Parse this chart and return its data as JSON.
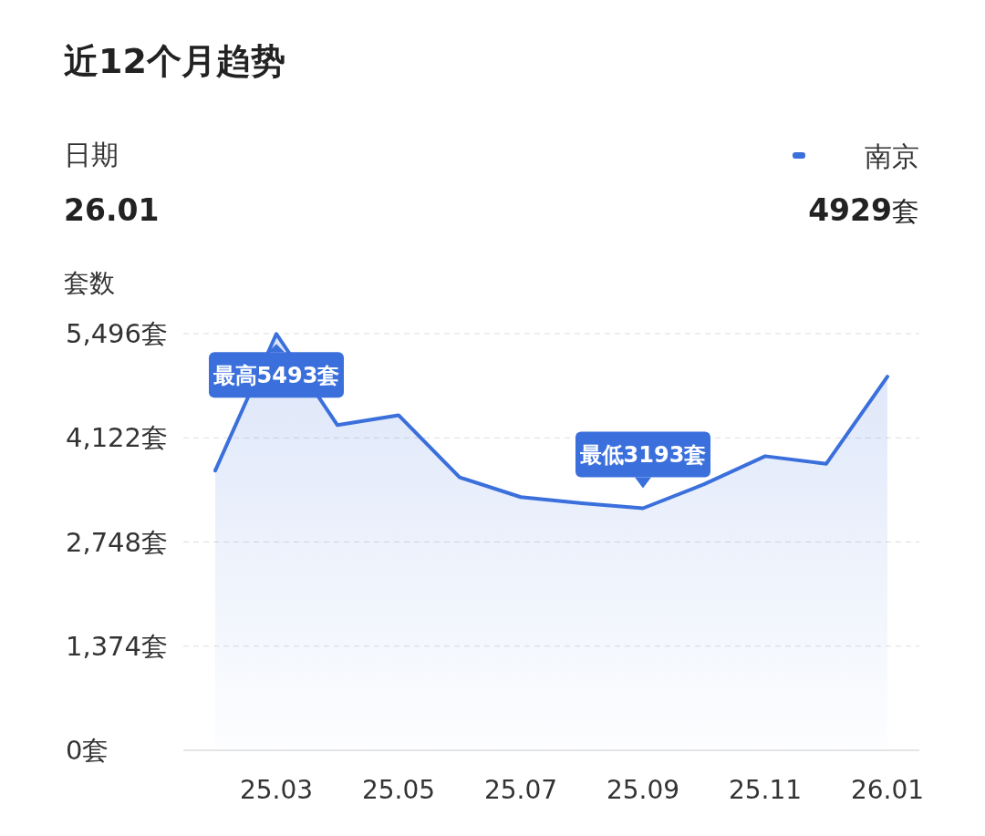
{
  "chart_data": {
    "type": "area",
    "title": "近12个月趋势",
    "ylabel": "套数",
    "categories": [
      null,
      "25.03",
      null,
      "25.05",
      null,
      "25.07",
      null,
      "25.09",
      null,
      "25.11",
      null,
      "26.01"
    ],
    "series": [
      {
        "name": "南京",
        "color": "#3a6fdc",
        "values": [
          3690,
          5493,
          4290,
          4420,
          3600,
          3340,
          3260,
          3193,
          3510,
          3880,
          3780,
          4929
        ]
      }
    ],
    "ylim": [
      0,
      5496
    ],
    "yticks": [
      {
        "value": 0,
        "label": "0套"
      },
      {
        "value": 1374,
        "label": "1,374套"
      },
      {
        "value": 2748,
        "label": "2,748套"
      },
      {
        "value": 4122,
        "label": "4,122套"
      },
      {
        "value": 5496,
        "label": "5,496套"
      }
    ],
    "grid": "y",
    "legend": "top right",
    "marker": "none",
    "line_style": "solid",
    "annotations": [
      "日期",
      "26.01",
      "4929套",
      {
        "text": "最高5493套",
        "x": "25.03",
        "y": 5493
      },
      {
        "text": "最低3193套",
        "x": "25.09",
        "y": 3193
      }
    ]
  }
}
